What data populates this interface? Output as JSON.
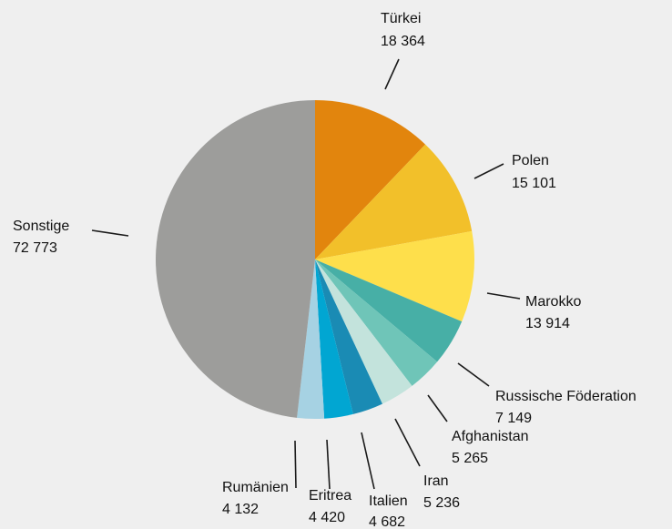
{
  "chart_data": {
    "type": "pie",
    "start_angle_deg": 0,
    "direction": "clockwise",
    "slices": [
      {
        "label": "Türkei",
        "value": 18364,
        "value_text": "18 364",
        "color": "#e2850d"
      },
      {
        "label": "Polen",
        "value": 15101,
        "value_text": "15 101",
        "color": "#f2c02a"
      },
      {
        "label": "Marokko",
        "value": 13914,
        "value_text": "13 914",
        "color": "#fedf4b"
      },
      {
        "label": "Russische Föderation",
        "value": 7149,
        "value_text": "7 149",
        "color": "#47afa6"
      },
      {
        "label": "Afghanistan",
        "value": 5265,
        "value_text": "5 265",
        "color": "#6fc5b8"
      },
      {
        "label": "Iran",
        "value": 5236,
        "value_text": "5 236",
        "color": "#c3e3dc"
      },
      {
        "label": "Italien",
        "value": 4682,
        "value_text": "4 682",
        "color": "#1a8bb4"
      },
      {
        "label": "Eritrea",
        "value": 4420,
        "value_text": "4 420",
        "color": "#01a6d2"
      },
      {
        "label": "Rumänien",
        "value": 4132,
        "value_text": "4 132",
        "color": "#a6d2e3"
      },
      {
        "label": "Sonstige",
        "value": 72773,
        "value_text": "72 773",
        "color": "#9d9d9b"
      }
    ]
  }
}
